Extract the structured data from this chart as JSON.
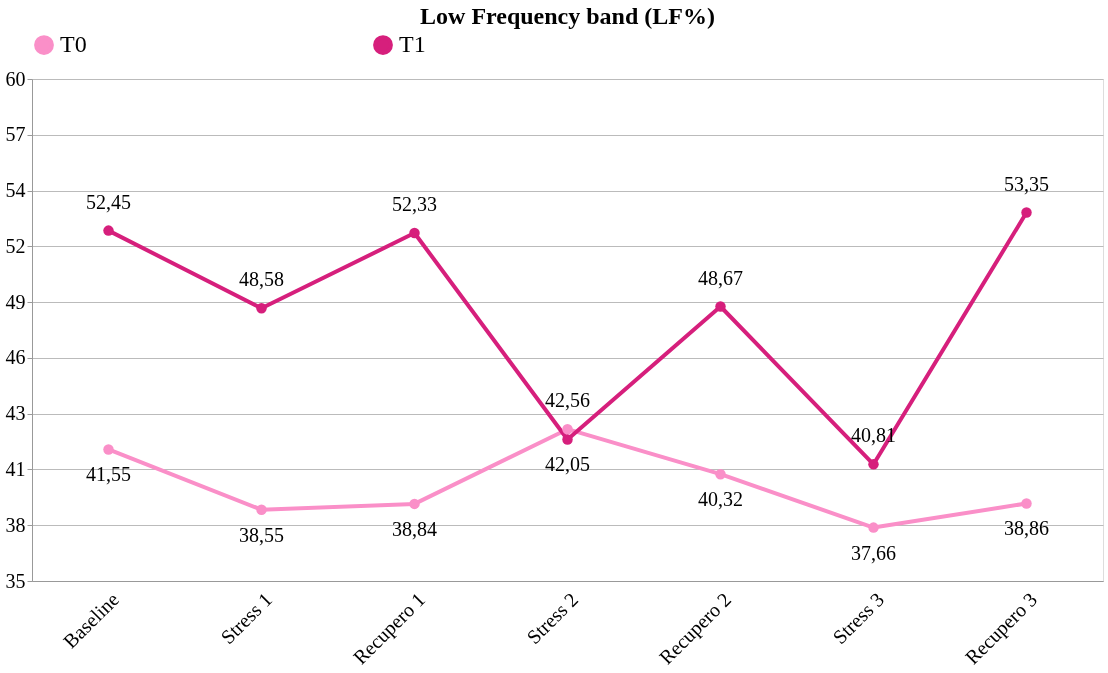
{
  "chart_data": {
    "type": "line",
    "title": "Low Frequency band (LF%)",
    "categories": [
      "Baseline",
      "Stress 1",
      "Recupero 1",
      "Stress 2",
      "Recupero 2",
      "Stress 3",
      "Recupero 3"
    ],
    "series": [
      {
        "name": "T0",
        "color": "#fa8fc8",
        "values": [
          41.55,
          38.55,
          38.84,
          42.56,
          40.32,
          37.66,
          38.86
        ],
        "value_labels": [
          "41,55",
          "38,55",
          "38,84",
          "42,56",
          "40,32",
          "37,66",
          "38,86"
        ]
      },
      {
        "name": "T1",
        "color": "#d61f7c",
        "values": [
          52.45,
          48.58,
          52.33,
          42.05,
          48.67,
          40.81,
          53.35
        ],
        "value_labels": [
          "52,45",
          "48,58",
          "52,33",
          "42,05",
          "48,67",
          "40,81",
          "53,35"
        ]
      }
    ],
    "ylim": [
      35,
      60
    ],
    "yticks": [
      35,
      {
        "value": 37.78,
        "label": "38"
      },
      {
        "value": 40.56,
        "label": "41"
      },
      {
        "value": 43.33,
        "label": "43"
      },
      {
        "value": 46.11,
        "label": "46"
      },
      {
        "value": 48.89,
        "label": "49"
      },
      {
        "value": 51.67,
        "label": "52"
      },
      {
        "value": 54.44,
        "label": "54"
      },
      {
        "value": 57.22,
        "label": "57"
      },
      60
    ],
    "grid": "y",
    "legend": "top",
    "marker": "circle",
    "line_style": "solid"
  }
}
